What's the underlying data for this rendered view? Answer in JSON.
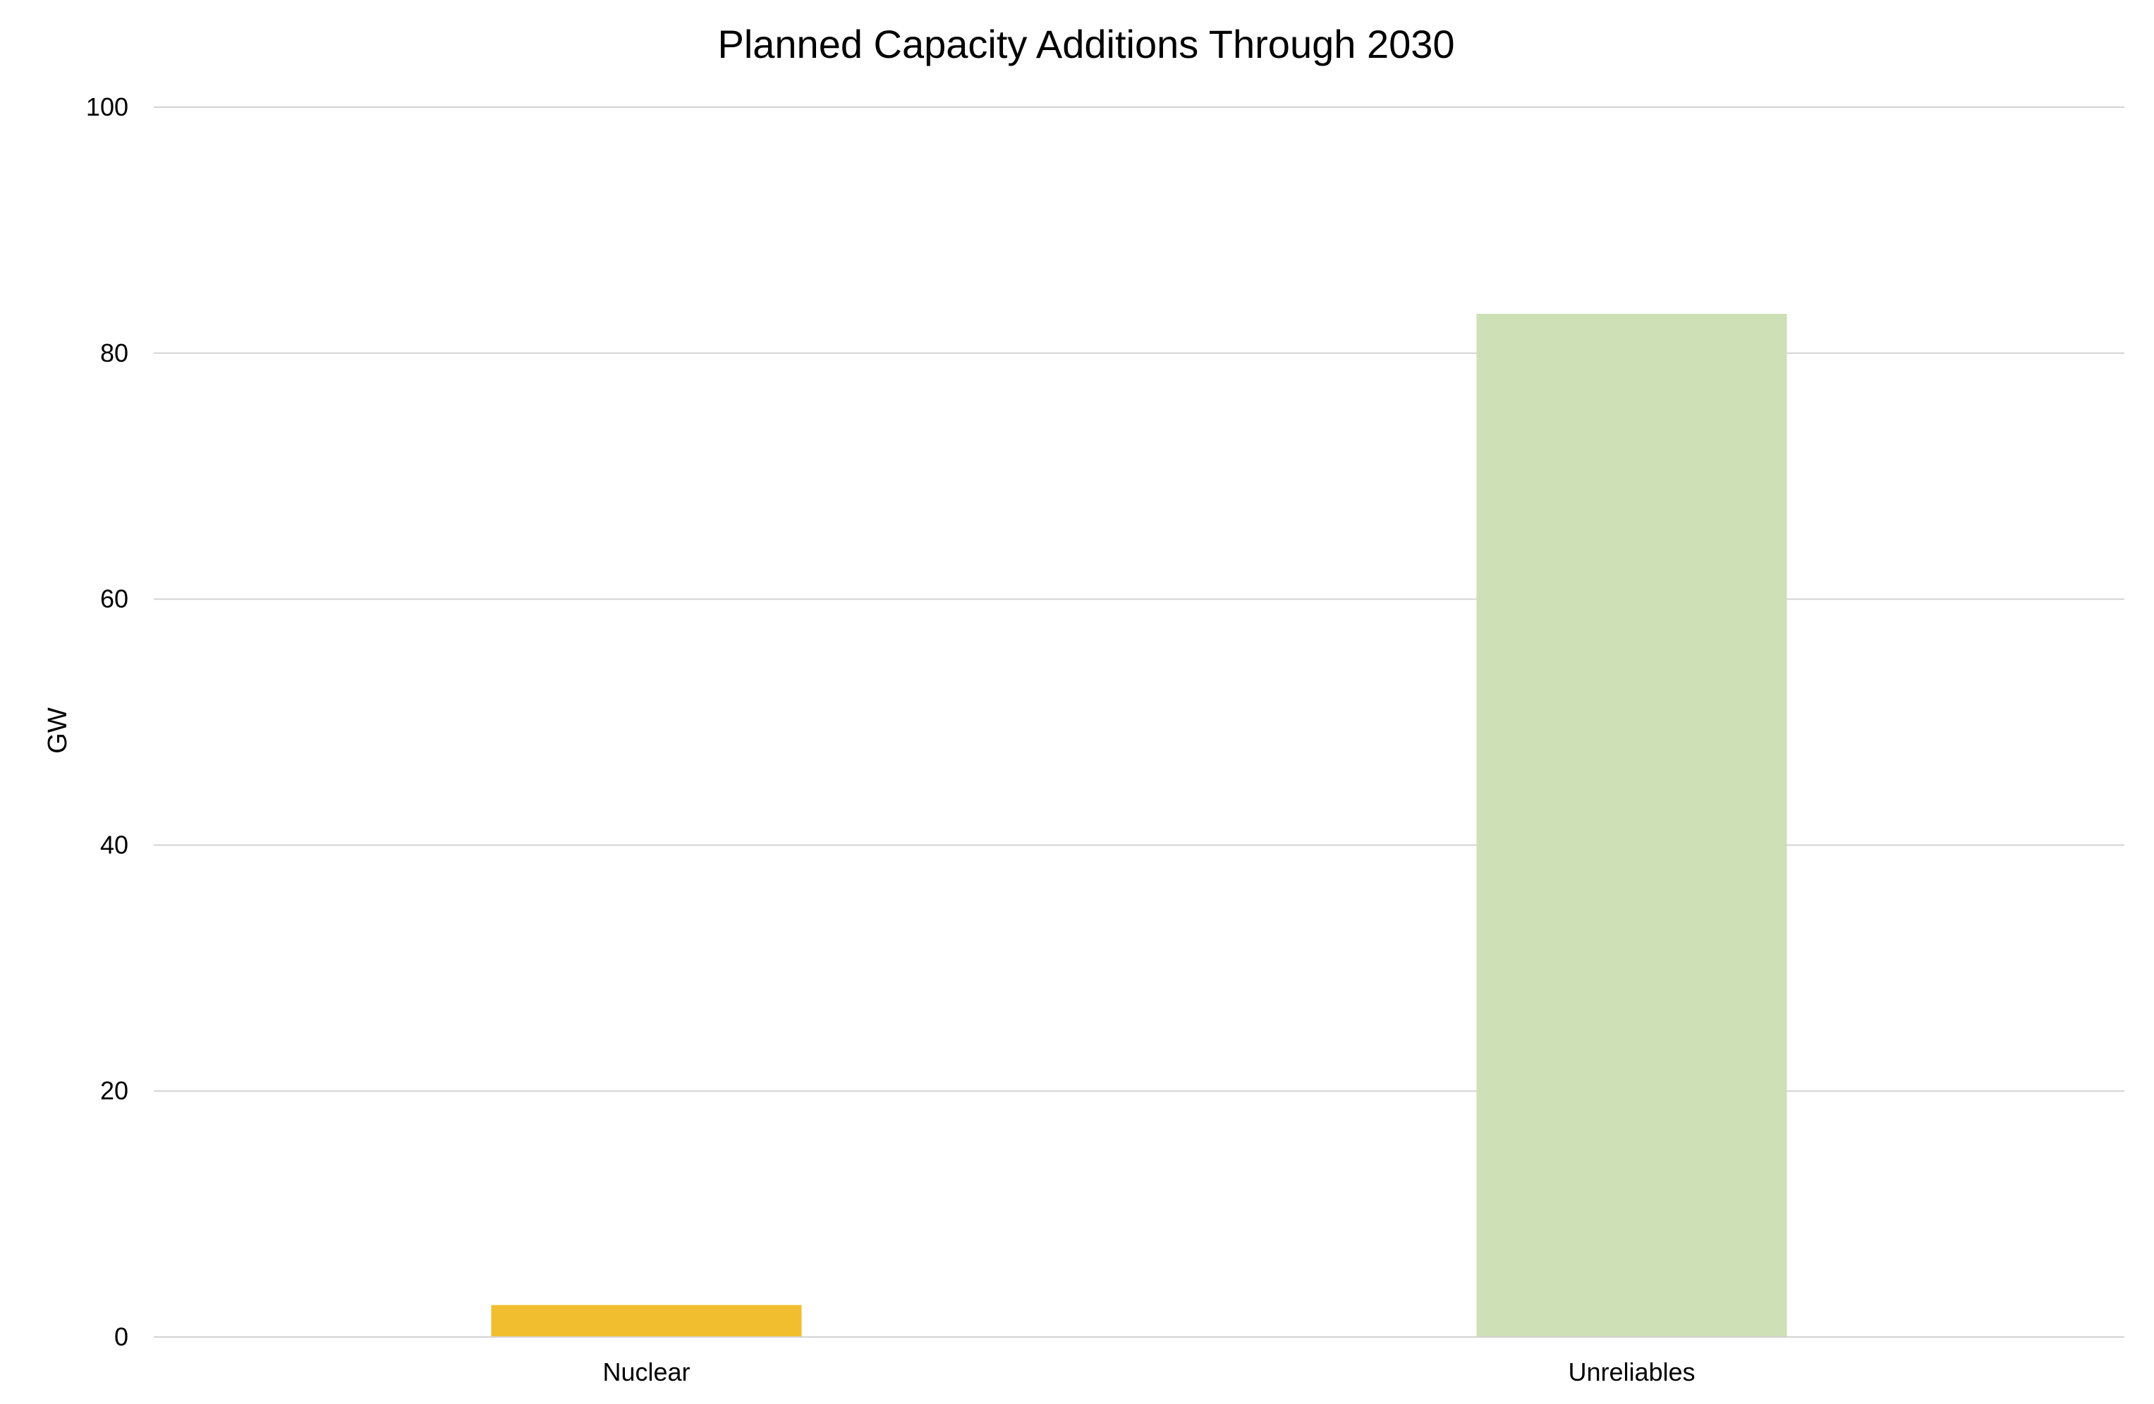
{
  "chart_data": {
    "type": "bar",
    "title": "Planned Capacity Additions Through 2030",
    "xlabel": "",
    "ylabel": "GW",
    "categories": [
      "Nuclear",
      "Unreliables"
    ],
    "values": [
      2.6,
      83.2
    ],
    "colors": [
      "#f0be2f",
      "#cde0b6"
    ],
    "ylim": [
      0,
      100
    ],
    "yticks": [
      0,
      20,
      40,
      60,
      80,
      100
    ],
    "ytick_labels": [
      "0",
      "20",
      "40",
      "60",
      "80",
      "100"
    ],
    "grid": true,
    "gridline_color": "#d3d3d3",
    "legend": "none"
  }
}
